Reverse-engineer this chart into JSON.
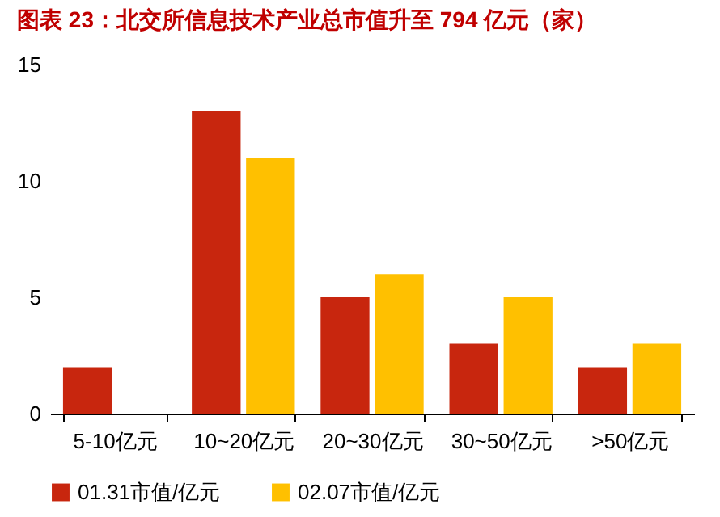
{
  "chart_data": {
    "type": "bar",
    "title": "图表 23：北交所信息技术产业总市值升至 794 亿元（家）",
    "categories": [
      "5-10亿元",
      "10~20亿元",
      "20~30亿元",
      "30~50亿元",
      ">50亿元"
    ],
    "series": [
      {
        "name": "01.31市值/亿元",
        "color": "#c8260e",
        "values": [
          2,
          13,
          5,
          3,
          2
        ]
      },
      {
        "name": "02.07市值/亿元",
        "color": "#ffc000",
        "values": [
          null,
          11,
          6,
          5,
          3
        ]
      }
    ],
    "ylim": [
      0,
      15
    ],
    "yticks": [
      0,
      5,
      10,
      15
    ],
    "grid": false,
    "legend": "bottom"
  }
}
